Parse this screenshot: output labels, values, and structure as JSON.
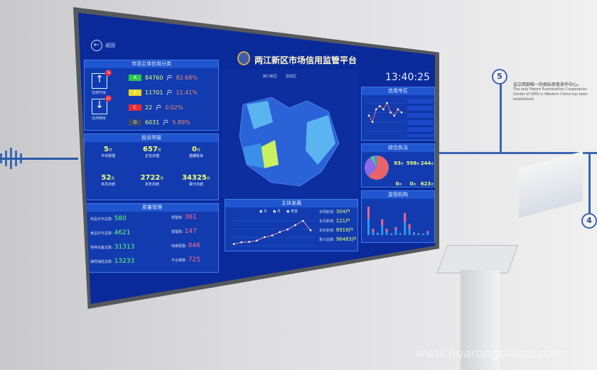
{
  "wall": {
    "step5": "5",
    "step4": "4",
    "caption_cn": "设立西部唯一的商标审查协作中心。",
    "caption_en": "The only Patent Examination Cooperation Center of SIPO in Western China has been established."
  },
  "header": {
    "back_label": "返回",
    "title": "两江新区市场信用监管平台",
    "time": "13:40:25"
  },
  "credit": {
    "title": "市场主体信用分类",
    "up_label": "信用升级",
    "up_count": "78",
    "down_label": "信用降级",
    "down_count": "63",
    "grades": [
      {
        "grade": "A",
        "count": "84760",
        "unit": "户",
        "pct": "82.68%",
        "color": "#2ec84a"
      },
      {
        "grade": "B",
        "count": "11701",
        "unit": "户",
        "pct": "11.41%",
        "color": "#e8d824"
      },
      {
        "grade": "C",
        "count": "22",
        "unit": "户",
        "pct": "0.02%",
        "color": "#e82a3a"
      },
      {
        "grade": "D",
        "count": "6031",
        "unit": "户",
        "pct": "5.89%",
        "color": "#3a4a6a"
      }
    ]
  },
  "complaints": {
    "title": "投诉举报",
    "items": [
      {
        "value": "5",
        "unit": "件",
        "label": "今日受理"
      },
      {
        "value": "657",
        "unit": "件",
        "label": "正在办理"
      },
      {
        "value": "0",
        "unit": "件",
        "label": "逾期投诉"
      },
      {
        "value": "52",
        "unit": "件",
        "label": "本月办结"
      },
      {
        "value": "2722",
        "unit": "件",
        "label": "本年办结"
      },
      {
        "value": "34325",
        "unit": "件",
        "label": "累计办结"
      }
    ]
  },
  "quality": {
    "title": "质量管理",
    "left": [
      {
        "label": "药品许可总数:",
        "value": "580"
      },
      {
        "label": "食品许可总数:",
        "value": "4621"
      },
      {
        "label": "特种设备总数:",
        "value": "31313"
      },
      {
        "label": "抽样抽检总数:",
        "value": "13233"
      }
    ],
    "right": [
      {
        "label": "预警数:",
        "value": "361"
      },
      {
        "label": "报警数:",
        "value": "147"
      },
      {
        "label": "电梯报警:",
        "value": "846"
      },
      {
        "label": "不合格数:",
        "value": "725"
      }
    ]
  },
  "map": {
    "legend": [
      "两江新区",
      "自贸区"
    ]
  },
  "growth": {
    "title": "主体发展",
    "options": [
      "年",
      "月",
      "季度"
    ],
    "stats": [
      {
        "label": "本周新增:",
        "value": "304户"
      },
      {
        "label": "本月新增:",
        "value": "121户"
      },
      {
        "label": "本年新增:",
        "value": "8919户"
      },
      {
        "label": "累计总数:",
        "value": "96483户"
      }
    ],
    "line": [
      2,
      4,
      4.5,
      6,
      10,
      12,
      16,
      19,
      24,
      29,
      18
    ]
  },
  "credit_zone": {
    "title": "信用专区",
    "line": [
      5,
      3,
      7,
      8,
      7,
      9,
      6,
      5,
      7,
      6
    ]
  },
  "enforcement": {
    "title": "综合执法",
    "items": [
      {
        "value": "93",
        "unit": "件"
      },
      {
        "value": "598",
        "unit": "件"
      },
      {
        "value": "244",
        "unit": "件"
      },
      {
        "value": "0",
        "unit": "件"
      },
      {
        "value": "0",
        "unit": "件"
      },
      {
        "value": "623",
        "unit": "件"
      }
    ],
    "pie": [
      {
        "share": 0.62,
        "color": "#e8646a"
      },
      {
        "share": 0.3,
        "color": "#8a6ae8"
      },
      {
        "share": 0.04,
        "color": "#5ad86a"
      },
      {
        "share": 0.04,
        "color": "#2aa0e8"
      }
    ]
  },
  "supervision": {
    "title": "监管机构",
    "bars": [
      [
        5,
        4
      ],
      [
        1,
        1
      ],
      [
        0.4,
        0.3
      ],
      [
        3,
        2
      ],
      [
        1,
        1
      ],
      [
        0.3,
        0.2
      ],
      [
        1.5,
        1
      ],
      [
        0.4,
        0.2
      ],
      [
        4,
        3
      ],
      [
        2,
        1.5
      ],
      [
        0.6,
        0.3
      ],
      [
        0.4,
        0.2
      ],
      [
        0.3,
        0.2
      ],
      [
        0.8,
        0.5
      ]
    ]
  },
  "watermark": "www.huarongdianzi.com"
}
